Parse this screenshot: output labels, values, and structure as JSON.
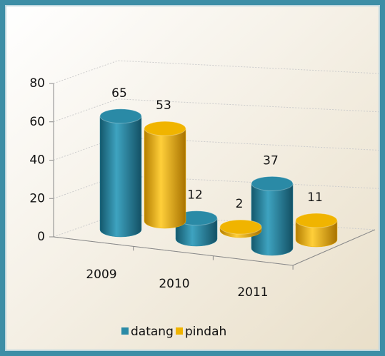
{
  "chart_data": {
    "type": "bar",
    "categories": [
      "2009",
      "2010",
      "2011"
    ],
    "series": [
      {
        "name": "datang",
        "color": "#2a8aa6",
        "values": [
          65,
          12,
          37
        ]
      },
      {
        "name": "pindah",
        "color": "#f0b400",
        "values": [
          53,
          2,
          11
        ]
      }
    ],
    "ylim": [
      0,
      80
    ],
    "yticks": [
      0,
      20,
      40,
      60,
      80
    ],
    "grid": true,
    "legend": "bottom"
  }
}
